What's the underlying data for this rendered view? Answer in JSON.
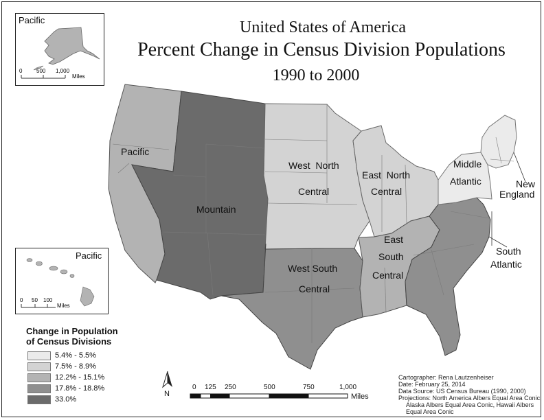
{
  "title": {
    "line1": "United States of America",
    "line2": "Percent Change in Census Division Populations",
    "line3": "1990 to 2000"
  },
  "insets": {
    "alaska": {
      "label": "Pacific",
      "scale_ticks": [
        "0",
        "500",
        "1,000"
      ],
      "scale_unit": "Miles"
    },
    "hawaii": {
      "label": "Pacific",
      "scale_ticks": [
        "0",
        "50",
        "100"
      ],
      "scale_unit": "Miles"
    }
  },
  "divisions": [
    {
      "name": "Pacific",
      "label_lines": [
        "Pacific"
      ],
      "class": "12.2% - 15.1%"
    },
    {
      "name": "Mountain",
      "label_lines": [
        "Mountain"
      ],
      "class": "33.0%"
    },
    {
      "name": "West North Central",
      "label_lines": [
        "West  North",
        "Central"
      ],
      "class": "7.5% - 8.9%"
    },
    {
      "name": "East North Central",
      "label_lines": [
        "East  North",
        "Central"
      ],
      "class": "7.5% - 8.9%"
    },
    {
      "name": "West South Central",
      "label_lines": [
        "West South",
        "Central"
      ],
      "class": "17.8% - 18.8%"
    },
    {
      "name": "East South Central",
      "label_lines": [
        "East",
        "South",
        "Central"
      ],
      "class": "12.2% - 15.1%"
    },
    {
      "name": "South Atlantic",
      "label_lines": [
        "South",
        "Atlantic"
      ],
      "class": "17.8% - 18.8%"
    },
    {
      "name": "Middle Atlantic",
      "label_lines": [
        "Middle",
        "Atlantic"
      ],
      "class": "5.4% - 5.5%"
    },
    {
      "name": "New England",
      "label_lines": [
        "New",
        "England"
      ],
      "class": "5.4% - 5.5%"
    }
  ],
  "legend": {
    "title_line1": "Change in Population",
    "title_line2": "of Census Divisions",
    "classes": [
      {
        "label": "5.4% - 5.5%",
        "color": "#ebebeb"
      },
      {
        "label": "7.5% - 8.9%",
        "color": "#d3d3d3"
      },
      {
        "label": "12.2% - 15.1%",
        "color": "#b3b3b3"
      },
      {
        "label": "17.8% - 18.8%",
        "color": "#8f8f8f"
      },
      {
        "label": "33.0%",
        "color": "#6b6b6b"
      }
    ]
  },
  "north_arrow": {
    "label": "N"
  },
  "scale_bar": {
    "ticks": [
      "0",
      "125",
      "250",
      "500",
      "750",
      "1,000"
    ],
    "unit": "Miles"
  },
  "metadata": {
    "cartographer": "Cartographer: Rena Lautzenheiser",
    "date": "Date: February 25, 2014",
    "source": "Data Source:  US Census Bureau (1990, 2000)",
    "projections_1": "Projections: North America Albers Equal Area Conic,",
    "projections_2": "Alaska Albers Equal Area Conic, Hawaii Albers",
    "projections_3": "Equal Area Conic"
  }
}
